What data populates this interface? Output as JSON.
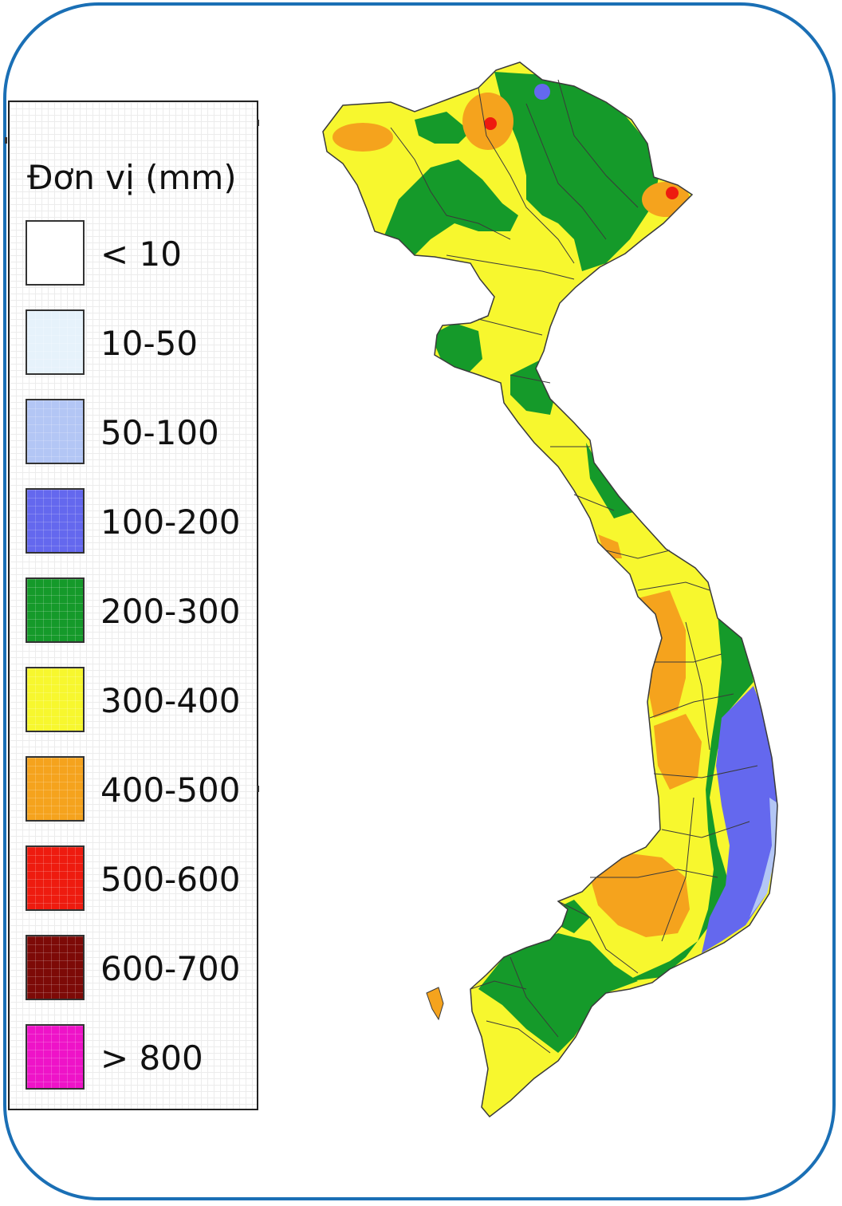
{
  "legend": {
    "title": "Đơn vị (mm)",
    "items": [
      {
        "label": "< 10",
        "color": "#ffffff"
      },
      {
        "label": "10-50",
        "color": "#e6f2fb"
      },
      {
        "label": "50-100",
        "color": "#b3c6f5"
      },
      {
        "label": "100-200",
        "color": "#6468ee"
      },
      {
        "label": "200-300",
        "color": "#159a2a"
      },
      {
        "label": "300-400",
        "color": "#f7f72e"
      },
      {
        "label": "400-500",
        "color": "#f5a31d"
      },
      {
        "label": "500-600",
        "color": "#ee1b0f"
      },
      {
        "label": "600-700",
        "color": "#7d0a07"
      },
      {
        "label": "> 800",
        "color": "#ee13c8"
      }
    ]
  },
  "map": {
    "colors": {
      "land_base": "#f7f72e",
      "green": "#159a2a",
      "orange": "#f5a31d",
      "red": "#ee1b0f",
      "blue": "#6468ee",
      "light_blue": "#b3c6f5",
      "border": "#3a3a3a"
    }
  }
}
